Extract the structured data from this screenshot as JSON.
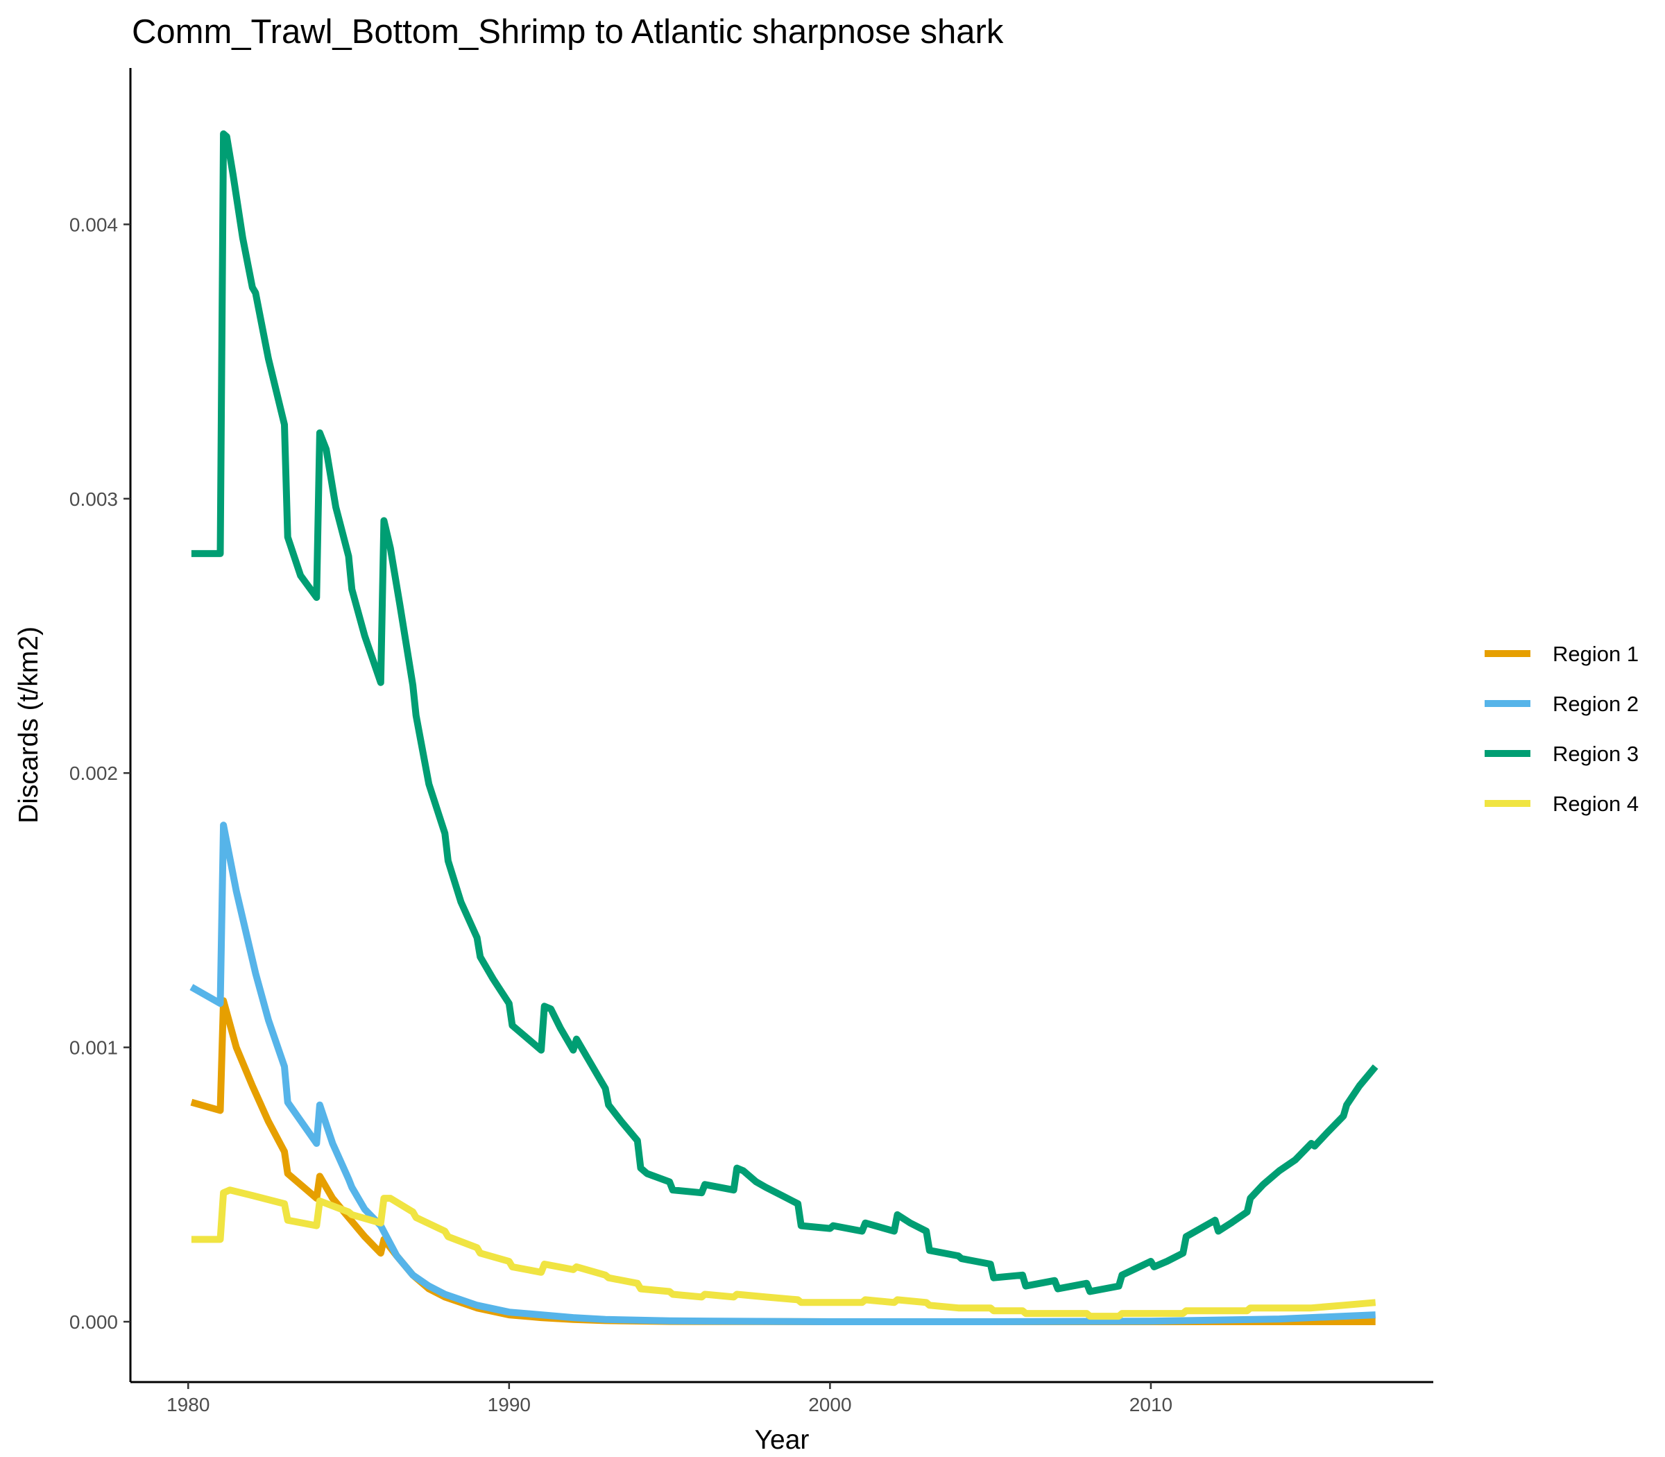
{
  "chart_data": {
    "type": "line",
    "title": "Comm_Trawl_Bottom_Shrimp to Atlantic sharpnose shark",
    "xlabel": "Year",
    "ylabel": "Discards (t/km2)",
    "xlim": [
      1978.2,
      2018.8
    ],
    "ylim": [
      -0.00022,
      0.00457
    ],
    "x_ticks": [
      1980,
      1990,
      2000,
      2010
    ],
    "x_tick_labels": [
      "1980",
      "1990",
      "2000",
      "2010"
    ],
    "y_ticks": [
      0,
      0.001,
      0.002,
      0.003,
      0.004
    ],
    "y_tick_labels": [
      "0.000",
      "0.001",
      "0.002",
      "0.003",
      "0.004"
    ],
    "grid": false,
    "legend_position": "right",
    "series": [
      {
        "name": "Region 1",
        "color": "#E69F00",
        "points": [
          [
            1980.1,
            0.0008
          ],
          [
            1981.0,
            0.00077
          ],
          [
            1981.1,
            0.00117
          ],
          [
            1981.5,
            0.001
          ],
          [
            1982.0,
            0.00086
          ],
          [
            1982.5,
            0.00073
          ],
          [
            1983.0,
            0.00062
          ],
          [
            1983.1,
            0.00054
          ],
          [
            1984.0,
            0.00045
          ],
          [
            1984.1,
            0.00053
          ],
          [
            1984.5,
            0.00045
          ],
          [
            1985.0,
            0.00038
          ],
          [
            1985.5,
            0.00031
          ],
          [
            1986.0,
            0.00025
          ],
          [
            1986.1,
            0.0003
          ],
          [
            1986.5,
            0.00024
          ],
          [
            1987.0,
            0.00017
          ],
          [
            1987.5,
            0.00012
          ],
          [
            1988.0,
            9e-05
          ],
          [
            1989.0,
            5e-05
          ],
          [
            1990.0,
            2.5e-05
          ],
          [
            1991.0,
            1.5e-05
          ],
          [
            1992.0,
            8e-06
          ],
          [
            1993.0,
            4e-06
          ],
          [
            1995.0,
            1e-06
          ],
          [
            2000.0,
            0.0
          ],
          [
            2005.0,
            0.0
          ],
          [
            2017.0,
            0.0
          ]
        ]
      },
      {
        "name": "Region 2",
        "color": "#56B4E9",
        "points": [
          [
            1980.1,
            0.00122
          ],
          [
            1981.0,
            0.00116
          ],
          [
            1981.1,
            0.00181
          ],
          [
            1981.5,
            0.00157
          ],
          [
            1982.0,
            0.00132
          ],
          [
            1982.1,
            0.00127
          ],
          [
            1982.5,
            0.0011
          ],
          [
            1983.0,
            0.00093
          ],
          [
            1983.1,
            0.0008
          ],
          [
            1984.0,
            0.00065
          ],
          [
            1984.1,
            0.00079
          ],
          [
            1984.5,
            0.00065
          ],
          [
            1985.0,
            0.00052
          ],
          [
            1985.1,
            0.00049
          ],
          [
            1985.5,
            0.00041
          ],
          [
            1986.0,
            0.00035
          ],
          [
            1986.5,
            0.00024
          ],
          [
            1987.0,
            0.00017
          ],
          [
            1987.5,
            0.00013
          ],
          [
            1988.0,
            0.0001
          ],
          [
            1989.0,
            6e-05
          ],
          [
            1990.0,
            3.5e-05
          ],
          [
            1991.0,
            2.5e-05
          ],
          [
            1992.0,
            1.5e-05
          ],
          [
            1993.0,
            8e-06
          ],
          [
            1995.0,
            3e-06
          ],
          [
            2000.0,
            0.0
          ],
          [
            2005.0,
            0.0
          ],
          [
            2010.0,
            2e-06
          ],
          [
            2014.0,
            1e-05
          ],
          [
            2017.0,
            2.5e-05
          ]
        ]
      },
      {
        "name": "Region 3",
        "color": "#009E73",
        "points": [
          [
            1980.1,
            0.0028
          ],
          [
            1981.0,
            0.0028
          ],
          [
            1981.1,
            0.00433
          ],
          [
            1981.2,
            0.00432
          ],
          [
            1981.4,
            0.00418
          ],
          [
            1981.7,
            0.00395
          ],
          [
            1982.0,
            0.00377
          ],
          [
            1982.1,
            0.00375
          ],
          [
            1982.5,
            0.00351
          ],
          [
            1983.0,
            0.00327
          ],
          [
            1983.1,
            0.00286
          ],
          [
            1983.5,
            0.00272
          ],
          [
            1984.0,
            0.00264
          ],
          [
            1984.1,
            0.00324
          ],
          [
            1984.3,
            0.00318
          ],
          [
            1984.6,
            0.00297
          ],
          [
            1985.0,
            0.00279
          ],
          [
            1985.1,
            0.00267
          ],
          [
            1985.5,
            0.0025
          ],
          [
            1986.0,
            0.00233
          ],
          [
            1986.1,
            0.00292
          ],
          [
            1986.3,
            0.00282
          ],
          [
            1986.6,
            0.00261
          ],
          [
            1987.0,
            0.00232
          ],
          [
            1987.1,
            0.00221
          ],
          [
            1987.5,
            0.00196
          ],
          [
            1988.0,
            0.00178
          ],
          [
            1988.1,
            0.00168
          ],
          [
            1988.5,
            0.00153
          ],
          [
            1989.0,
            0.0014
          ],
          [
            1989.1,
            0.00133
          ],
          [
            1989.5,
            0.00125
          ],
          [
            1990.0,
            0.00116
          ],
          [
            1990.1,
            0.00108
          ],
          [
            1990.5,
            0.00104
          ],
          [
            1991.0,
            0.00099
          ],
          [
            1991.1,
            0.00115
          ],
          [
            1991.3,
            0.00114
          ],
          [
            1991.6,
            0.00107
          ],
          [
            1992.0,
            0.00099
          ],
          [
            1992.1,
            0.00103
          ],
          [
            1992.5,
            0.00095
          ],
          [
            1993.0,
            0.00085
          ],
          [
            1993.1,
            0.00079
          ],
          [
            1993.5,
            0.00073
          ],
          [
            1994.0,
            0.00066
          ],
          [
            1994.1,
            0.00056
          ],
          [
            1994.3,
            0.00054
          ],
          [
            1995.0,
            0.00051
          ],
          [
            1995.1,
            0.00048
          ],
          [
            1996.0,
            0.00047
          ],
          [
            1996.1,
            0.0005
          ],
          [
            1997.0,
            0.00048
          ],
          [
            1997.1,
            0.00056
          ],
          [
            1997.3,
            0.00055
          ],
          [
            1997.7,
            0.00051
          ],
          [
            1998.0,
            0.00049
          ],
          [
            1998.5,
            0.00046
          ],
          [
            1999.0,
            0.00043
          ],
          [
            1999.1,
            0.00035
          ],
          [
            2000.0,
            0.00034
          ],
          [
            2000.1,
            0.00035
          ],
          [
            2001.0,
            0.00033
          ],
          [
            2001.1,
            0.00036
          ],
          [
            2002.0,
            0.00033
          ],
          [
            2002.1,
            0.00039
          ],
          [
            2002.5,
            0.00036
          ],
          [
            2003.0,
            0.00033
          ],
          [
            2003.1,
            0.00026
          ],
          [
            2004.0,
            0.00024
          ],
          [
            2004.1,
            0.00023
          ],
          [
            2005.0,
            0.00021
          ],
          [
            2005.1,
            0.00016
          ],
          [
            2006.0,
            0.00017
          ],
          [
            2006.1,
            0.00013
          ],
          [
            2007.0,
            0.00015
          ],
          [
            2007.1,
            0.00012
          ],
          [
            2008.0,
            0.00014
          ],
          [
            2008.1,
            0.00011
          ],
          [
            2009.0,
            0.00013
          ],
          [
            2009.1,
            0.00017
          ],
          [
            2010.0,
            0.00022
          ],
          [
            2010.1,
            0.0002
          ],
          [
            2010.5,
            0.00022
          ],
          [
            2011.0,
            0.00025
          ],
          [
            2011.1,
            0.00031
          ],
          [
            2012.0,
            0.00037
          ],
          [
            2012.1,
            0.00033
          ],
          [
            2012.5,
            0.00036
          ],
          [
            2013.0,
            0.0004
          ],
          [
            2013.1,
            0.00045
          ],
          [
            2013.5,
            0.0005
          ],
          [
            2014.0,
            0.00055
          ],
          [
            2014.5,
            0.00059
          ],
          [
            2015.0,
            0.00065
          ],
          [
            2015.1,
            0.00064
          ],
          [
            2015.5,
            0.00069
          ],
          [
            2016.0,
            0.00075
          ],
          [
            2016.1,
            0.00079
          ],
          [
            2016.5,
            0.00086
          ],
          [
            2017.0,
            0.00093
          ]
        ]
      },
      {
        "name": "Region 4",
        "color": "#F0E442",
        "points": [
          [
            1980.1,
            0.0003
          ],
          [
            1981.0,
            0.0003
          ],
          [
            1981.1,
            0.00047
          ],
          [
            1981.3,
            0.00048
          ],
          [
            1982.0,
            0.00046
          ],
          [
            1983.0,
            0.00043
          ],
          [
            1983.1,
            0.00037
          ],
          [
            1984.0,
            0.00035
          ],
          [
            1984.1,
            0.00044
          ],
          [
            1985.0,
            0.0004
          ],
          [
            1985.1,
            0.00039
          ],
          [
            1986.0,
            0.00036
          ],
          [
            1986.1,
            0.00045
          ],
          [
            1986.3,
            0.00045
          ],
          [
            1987.0,
            0.0004
          ],
          [
            1987.1,
            0.00038
          ],
          [
            1988.0,
            0.00033
          ],
          [
            1988.1,
            0.00031
          ],
          [
            1989.0,
            0.00027
          ],
          [
            1989.1,
            0.00025
          ],
          [
            1990.0,
            0.00022
          ],
          [
            1990.1,
            0.0002
          ],
          [
            1991.0,
            0.00018
          ],
          [
            1991.1,
            0.00021
          ],
          [
            1992.0,
            0.00019
          ],
          [
            1992.1,
            0.0002
          ],
          [
            1993.0,
            0.00017
          ],
          [
            1993.1,
            0.00016
          ],
          [
            1994.0,
            0.00014
          ],
          [
            1994.1,
            0.00012
          ],
          [
            1995.0,
            0.00011
          ],
          [
            1995.1,
            0.0001
          ],
          [
            1996.0,
            9e-05
          ],
          [
            1996.1,
            0.0001
          ],
          [
            1997.0,
            9e-05
          ],
          [
            1997.1,
            0.0001
          ],
          [
            1998.0,
            9e-05
          ],
          [
            1999.0,
            8e-05
          ],
          [
            1999.1,
            7e-05
          ],
          [
            2000.0,
            7e-05
          ],
          [
            2001.0,
            7e-05
          ],
          [
            2001.1,
            8e-05
          ],
          [
            2002.0,
            7e-05
          ],
          [
            2002.1,
            8e-05
          ],
          [
            2003.0,
            7e-05
          ],
          [
            2003.1,
            6e-05
          ],
          [
            2004.0,
            5e-05
          ],
          [
            2005.0,
            5e-05
          ],
          [
            2005.1,
            4e-05
          ],
          [
            2006.0,
            4e-05
          ],
          [
            2006.1,
            3e-05
          ],
          [
            2007.0,
            3e-05
          ],
          [
            2008.0,
            3e-05
          ],
          [
            2008.1,
            2e-05
          ],
          [
            2009.0,
            2e-05
          ],
          [
            2009.1,
            3e-05
          ],
          [
            2010.0,
            3e-05
          ],
          [
            2011.0,
            3e-05
          ],
          [
            2011.1,
            4e-05
          ],
          [
            2012.0,
            4e-05
          ],
          [
            2012.1,
            4e-05
          ],
          [
            2013.0,
            4e-05
          ],
          [
            2013.1,
            5e-05
          ],
          [
            2014.0,
            5e-05
          ],
          [
            2015.0,
            5e-05
          ],
          [
            2016.0,
            6e-05
          ],
          [
            2017.0,
            7e-05
          ]
        ]
      }
    ]
  }
}
